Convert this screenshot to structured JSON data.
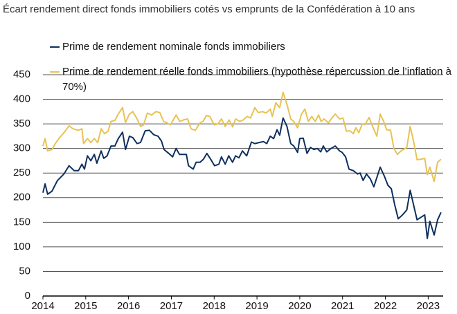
{
  "chart_data": {
    "type": "line",
    "title": "Écart rendement direct fonds immobiliers cotés vs emprunts de la Confédération à 10 ans",
    "xlim": [
      2014,
      2023.35
    ],
    "xticks": [
      2014,
      2015,
      2016,
      2017,
      2018,
      2019,
      2020,
      2021,
      2022,
      2023
    ],
    "ylim": [
      0,
      450
    ],
    "yticks": [
      0,
      50,
      100,
      150,
      200,
      250,
      300,
      350,
      400,
      450
    ],
    "grid": true,
    "series": [
      {
        "name": "Prime de rendement nominale fonds immobiliers",
        "color": "#0d2f5e",
        "x": [
          2014,
          2014.05,
          2014.11,
          2014.21,
          2014.34,
          2014.49,
          2014.61,
          2014.73,
          2014.83,
          2014.91,
          2014.97,
          2015.04,
          2015.12,
          2015.2,
          2015.26,
          2015.36,
          2015.42,
          2015.5,
          2015.59,
          2015.68,
          2015.76,
          2015.86,
          2015.93,
          2016.02,
          2016.1,
          2016.2,
          2016.28,
          2016.39,
          2016.49,
          2016.59,
          2016.69,
          2016.77,
          2016.83,
          2016.94,
          2017.03,
          2017.11,
          2017.19,
          2017.35,
          2017.4,
          2017.51,
          2017.58,
          2017.67,
          2017.75,
          2017.83,
          2017.92,
          2018.01,
          2018.11,
          2018.17,
          2018.26,
          2018.34,
          2018.43,
          2018.5,
          2018.58,
          2018.66,
          2018.76,
          2018.87,
          2018.95,
          2019.05,
          2019.15,
          2019.23,
          2019.31,
          2019.39,
          2019.47,
          2019.53,
          2019.61,
          2019.7,
          2019.79,
          2019.86,
          2019.95,
          2020,
          2020.08,
          2020.17,
          2020.25,
          2020.33,
          2020.41,
          2020.49,
          2020.55,
          2020.63,
          2020.73,
          2020.83,
          2020.93,
          2020.99,
          2021.07,
          2021.15,
          2021.25,
          2021.35,
          2021.41,
          2021.48,
          2021.56,
          2021.65,
          2021.73,
          2021.88,
          2021.98,
          2022.06,
          2022.14,
          2022.22,
          2022.3,
          2022.4,
          2022.5,
          2022.58,
          2022.66,
          2022.74,
          2022.83,
          2022.92,
          2022.98,
          2023.04,
          2023.14,
          2023.22,
          2023.3
        ],
        "values": [
          210,
          228,
          207,
          213,
          235,
          248,
          265,
          255,
          255,
          268,
          258,
          285,
          275,
          288,
          270,
          295,
          280,
          285,
          305,
          305,
          320,
          333,
          298,
          325,
          322,
          310,
          312,
          336,
          337,
          328,
          325,
          315,
          298,
          290,
          283,
          300,
          288,
          288,
          265,
          258,
          272,
          272,
          278,
          290,
          278,
          265,
          268,
          283,
          268,
          285,
          272,
          285,
          281,
          295,
          285,
          313,
          310,
          312,
          314,
          310,
          325,
          320,
          338,
          327,
          362,
          345,
          310,
          305,
          292,
          320,
          321,
          290,
          302,
          298,
          300,
          293,
          305,
          293,
          300,
          305,
          295,
          292,
          283,
          258,
          255,
          248,
          250,
          235,
          248,
          238,
          222,
          262,
          243,
          225,
          218,
          185,
          157,
          165,
          175,
          215,
          185,
          155,
          160,
          165,
          117,
          152,
          124,
          155,
          170
        ]
      },
      {
        "name": "Prime de rendement réelle fonds immobiliers (hypothèse répercussion de l’inflation à 70%)",
        "color": "#e8c252",
        "x": [
          2014,
          2014.05,
          2014.11,
          2014.21,
          2014.29,
          2014.39,
          2014.5,
          2014.61,
          2014.7,
          2014.83,
          2014.91,
          2014.95,
          2015.04,
          2015.12,
          2015.2,
          2015.28,
          2015.36,
          2015.44,
          2015.52,
          2015.59,
          2015.68,
          2015.76,
          2015.86,
          2015.93,
          2016.02,
          2016.1,
          2016.2,
          2016.28,
          2016.35,
          2016.44,
          2016.54,
          2016.64,
          2016.73,
          2016.82,
          2016.9,
          2016.98,
          2017.11,
          2017.2,
          2017.28,
          2017.38,
          2017.46,
          2017.56,
          2017.67,
          2017.74,
          2017.82,
          2017.9,
          2018,
          2018.09,
          2018.17,
          2018.26,
          2018.35,
          2018.43,
          2018.5,
          2018.6,
          2018.68,
          2018.77,
          2018.85,
          2018.95,
          2019.03,
          2019.13,
          2019.21,
          2019.31,
          2019.36,
          2019.44,
          2019.53,
          2019.61,
          2019.7,
          2019.79,
          2019.86,
          2019.95,
          2020.04,
          2020.12,
          2020.2,
          2020.28,
          2020.36,
          2020.44,
          2020.5,
          2020.57,
          2020.67,
          2020.75,
          2020.83,
          2020.93,
          2021.01,
          2021.09,
          2021.17,
          2021.25,
          2021.31,
          2021.38,
          2021.46,
          2021.52,
          2021.62,
          2021.7,
          2021.8,
          2021.88,
          2021.96,
          2022.03,
          2022.12,
          2022.2,
          2022.28,
          2022.38,
          2022.5,
          2022.58,
          2022.67,
          2022.74,
          2022.83,
          2022.92,
          2022.98,
          2023.04,
          2023.14,
          2023.22,
          2023.3
        ],
        "values": [
          305,
          320,
          295,
          298,
          310,
          322,
          333,
          346,
          340,
          337,
          340,
          310,
          320,
          312,
          320,
          312,
          340,
          330,
          335,
          355,
          357,
          370,
          383,
          353,
          370,
          375,
          360,
          345,
          348,
          372,
          368,
          375,
          373,
          355,
          352,
          348,
          368,
          355,
          358,
          360,
          340,
          337,
          352,
          355,
          367,
          365,
          348,
          350,
          360,
          345,
          358,
          344,
          360,
          355,
          358,
          365,
          362,
          383,
          373,
          375,
          372,
          380,
          365,
          393,
          383,
          414,
          390,
          360,
          355,
          342,
          370,
          380,
          355,
          365,
          355,
          368,
          355,
          360,
          352,
          362,
          370,
          360,
          362,
          335,
          336,
          330,
          342,
          332,
          350,
          348,
          363,
          345,
          325,
          370,
          355,
          338,
          337,
          300,
          288,
          296,
          302,
          345,
          310,
          277,
          278,
          280,
          247,
          262,
          233,
          272,
          278
        ]
      }
    ]
  }
}
